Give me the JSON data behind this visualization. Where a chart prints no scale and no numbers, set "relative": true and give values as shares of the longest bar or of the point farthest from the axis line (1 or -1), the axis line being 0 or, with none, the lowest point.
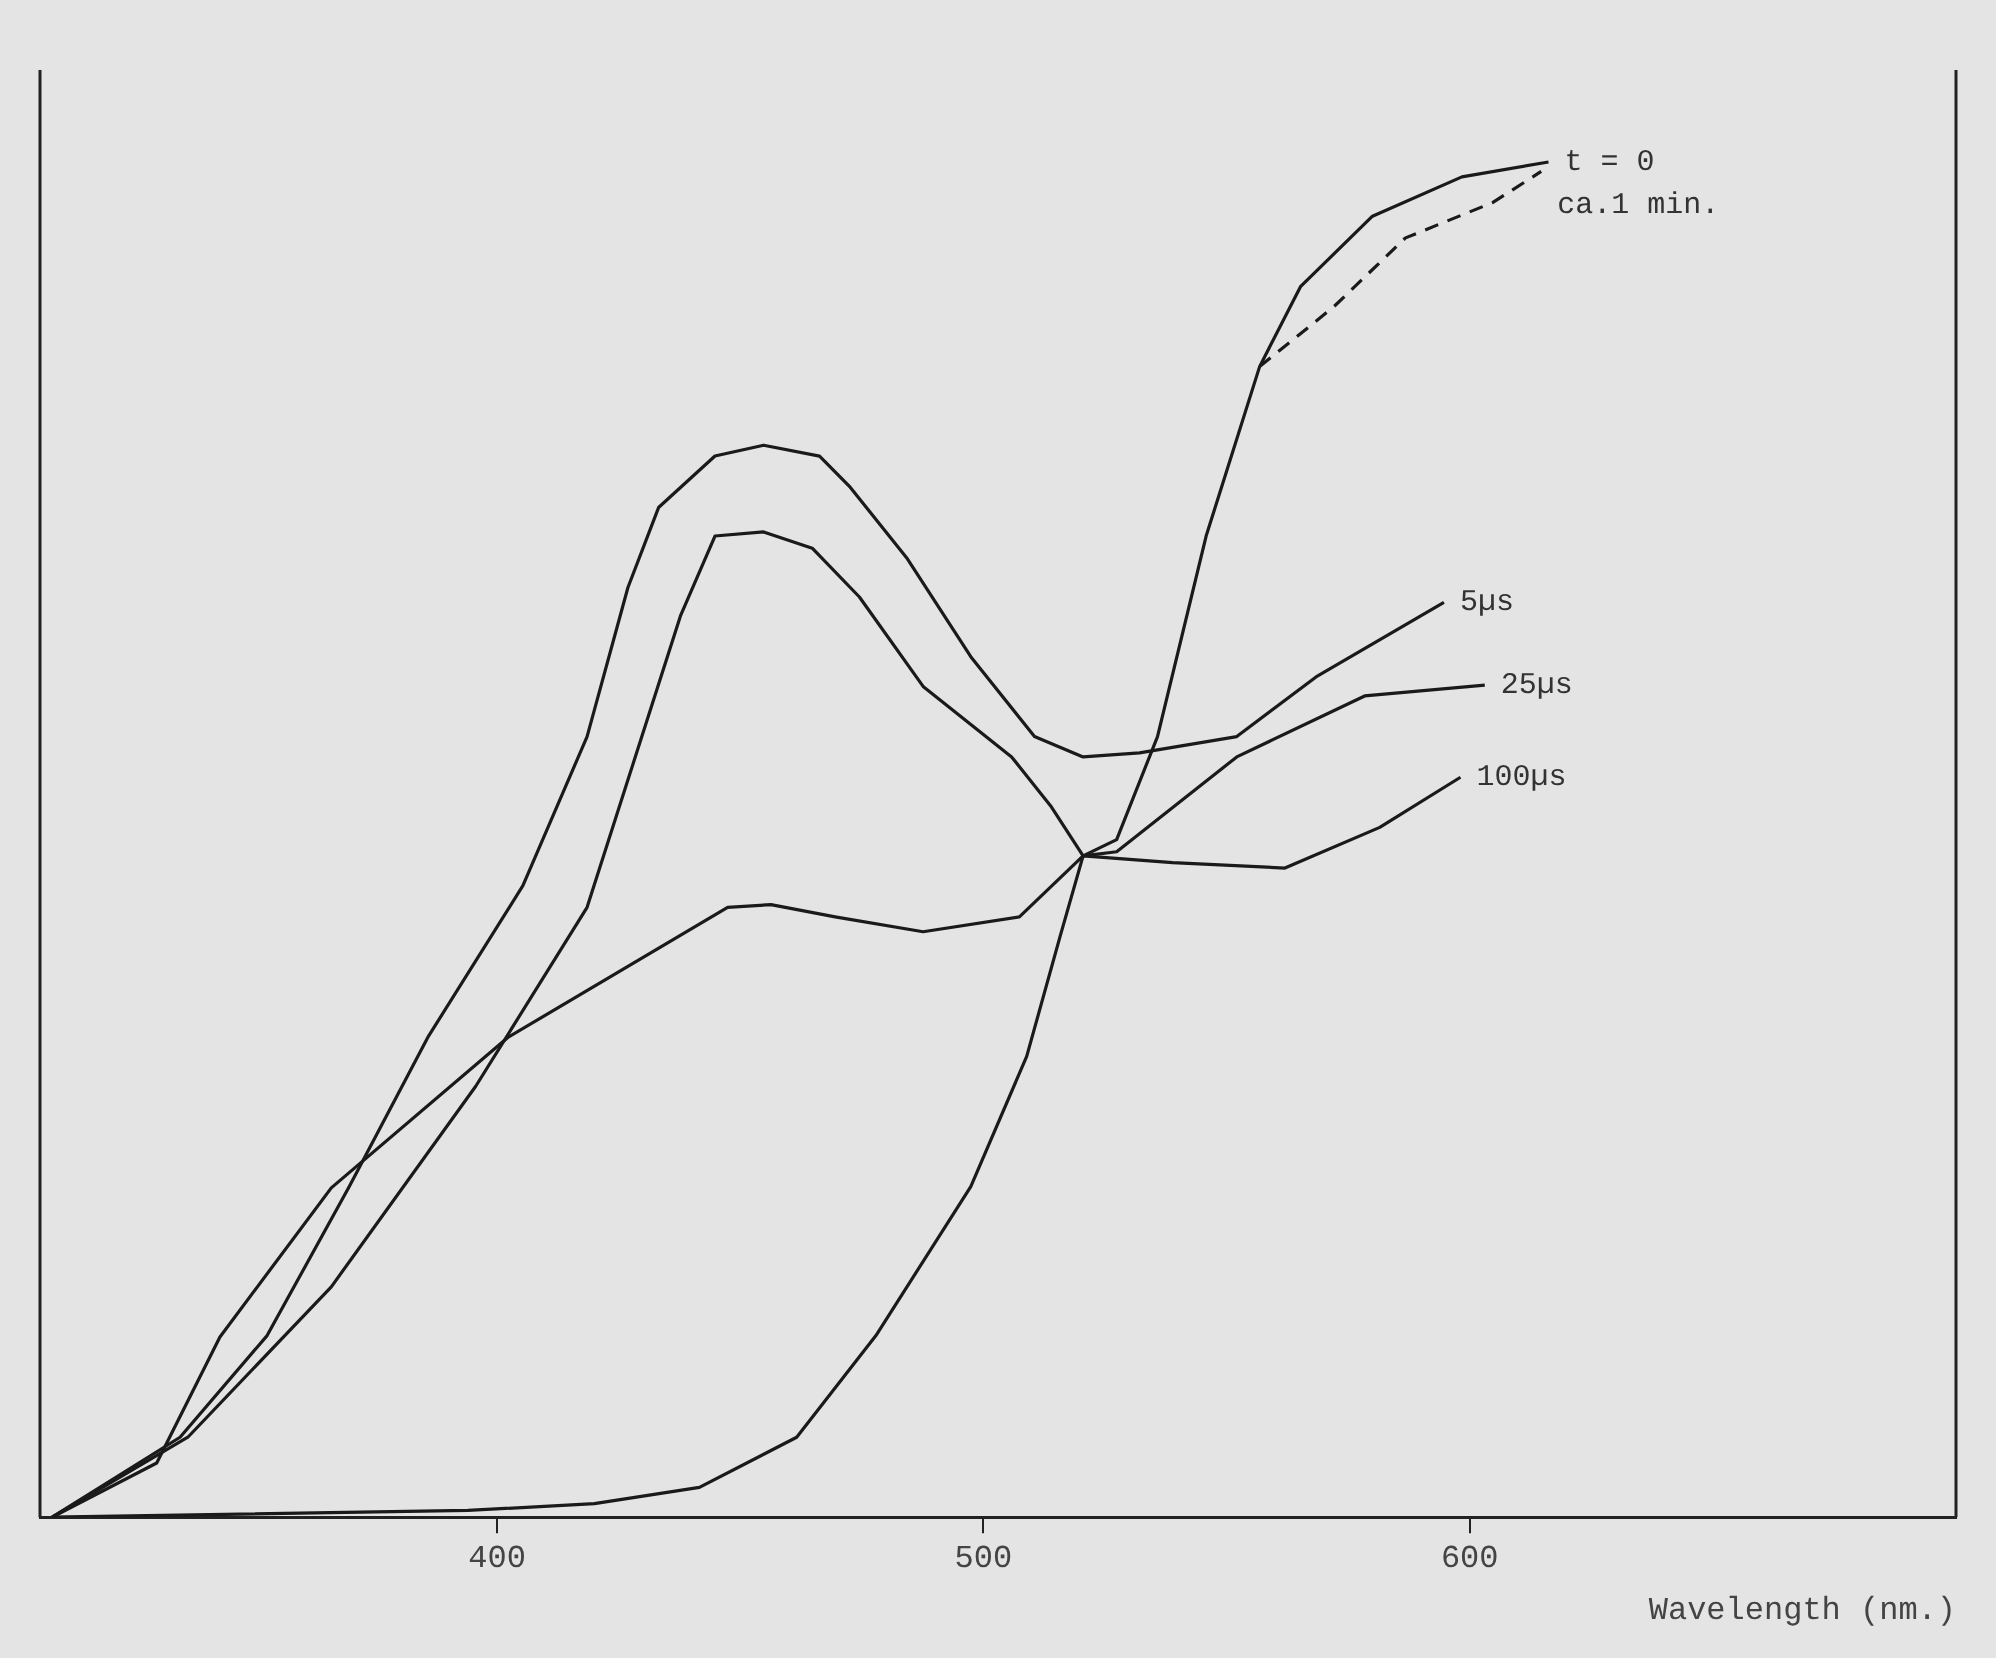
{
  "chart_data": {
    "type": "line",
    "xlabel": "Wavelength (nm.)",
    "xlim": [
      306,
      700
    ],
    "xticks": [
      400,
      500,
      600
    ],
    "relative": true,
    "grid": false,
    "legend": false,
    "marker": "none",
    "line_style": "solid",
    "series": [
      {
        "name": "t = 0",
        "color": "#1a1a1a",
        "x": [
          308.5,
          394,
          420,
          441.6,
          461.6,
          477.9,
          497.4,
          508.9,
          515.8,
          520.5,
          527.4,
          535.8,
          545.8,
          556.8,
          565.2,
          580,
          598.4,
          616.2
        ],
        "values": [
          0,
          0.005,
          0.01,
          0.022,
          0.059,
          0.134,
          0.244,
          0.34,
          0.429,
          0.488,
          0.5,
          0.576,
          0.724,
          0.849,
          0.908,
          0.96,
          0.989,
          1.0
        ]
      },
      {
        "name": "ca.1 min.",
        "color": "#1a1a1a",
        "line_style": "dashed",
        "x": [
          556.8,
          572,
          586.8,
          604.7,
          614.7
        ],
        "values": [
          0.849,
          0.893,
          0.944,
          0.97,
          0.993
        ]
      },
      {
        "name": "5µs",
        "color": "#1a1a1a",
        "x": [
          308.5,
          334.8,
          352.7,
          369.6,
          385.9,
          405.3,
          418.5,
          426.9,
          433.2,
          444.8,
          454.8,
          466.3,
          472.6,
          484.2,
          497.4,
          510.5,
          520.5,
          532.1,
          552.1,
          568.4,
          594.7
        ],
        "values": [
          0,
          0.059,
          0.134,
          0.244,
          0.355,
          0.466,
          0.576,
          0.686,
          0.745,
          0.783,
          0.791,
          0.783,
          0.76,
          0.708,
          0.635,
          0.576,
          0.561,
          0.564,
          0.576,
          0.62,
          0.675
        ]
      },
      {
        "name": "25µs",
        "color": "#1a1a1a",
        "x": [
          308.5,
          336.4,
          365.9,
          395.6,
          418.5,
          437.7,
          444.8,
          454.8,
          464.8,
          474.5,
          487.6,
          505.8,
          514,
          520.5,
          527.4,
          552.1,
          578.4,
          603.1
        ],
        "values": [
          0,
          0.059,
          0.17,
          0.318,
          0.45,
          0.665,
          0.724,
          0.727,
          0.715,
          0.679,
          0.613,
          0.561,
          0.524,
          0.488,
          0.491,
          0.561,
          0.606,
          0.614
        ]
      },
      {
        "name": "100µs",
        "color": "#1a1a1a",
        "x": [
          308.5,
          330,
          343,
          365.9,
          402.2,
          447.4,
          456.3,
          469.5,
          487.6,
          507.4,
          520.5,
          538.9,
          562,
          581.5,
          598.1
        ],
        "values": [
          0,
          0.04,
          0.133,
          0.243,
          0.354,
          0.45,
          0.452,
          0.443,
          0.432,
          0.443,
          0.488,
          0.483,
          0.479,
          0.509,
          0.546
        ]
      }
    ]
  }
}
